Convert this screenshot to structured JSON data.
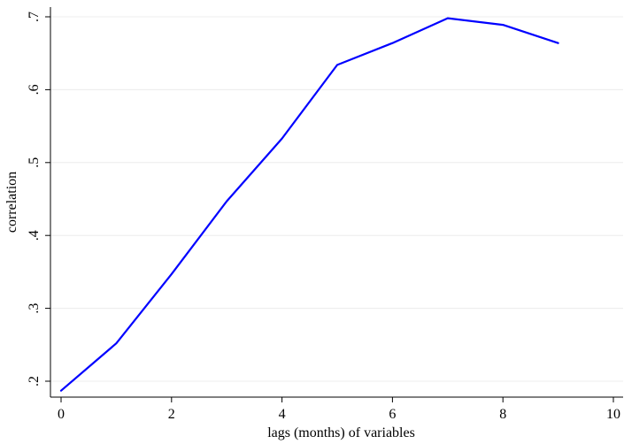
{
  "chart_data": {
    "type": "line",
    "title": "",
    "xlabel": "lags (months) of variables",
    "ylabel": "correlation",
    "xlim": [
      0,
      10
    ],
    "ylim": [
      0.187,
      0.71
    ],
    "x_ticks": [
      0,
      2,
      4,
      6,
      8,
      10
    ],
    "x_tick_labels": [
      "0",
      "2",
      "4",
      "6",
      "8",
      "10"
    ],
    "y_ticks": [
      0.2,
      0.3,
      0.4,
      0.5,
      0.6,
      0.7
    ],
    "y_tick_labels": [
      ".2",
      ".3",
      ".4",
      ".5",
      ".6",
      ".7"
    ],
    "grid": "horizontal",
    "series": [
      {
        "color": "#0000ff",
        "x": [
          0,
          1,
          2,
          3,
          4,
          5,
          6,
          7,
          8,
          9
        ],
        "y": [
          0.187,
          0.252,
          0.347,
          0.447,
          0.533,
          0.634,
          0.664,
          0.698,
          0.689,
          0.664
        ]
      }
    ]
  }
}
